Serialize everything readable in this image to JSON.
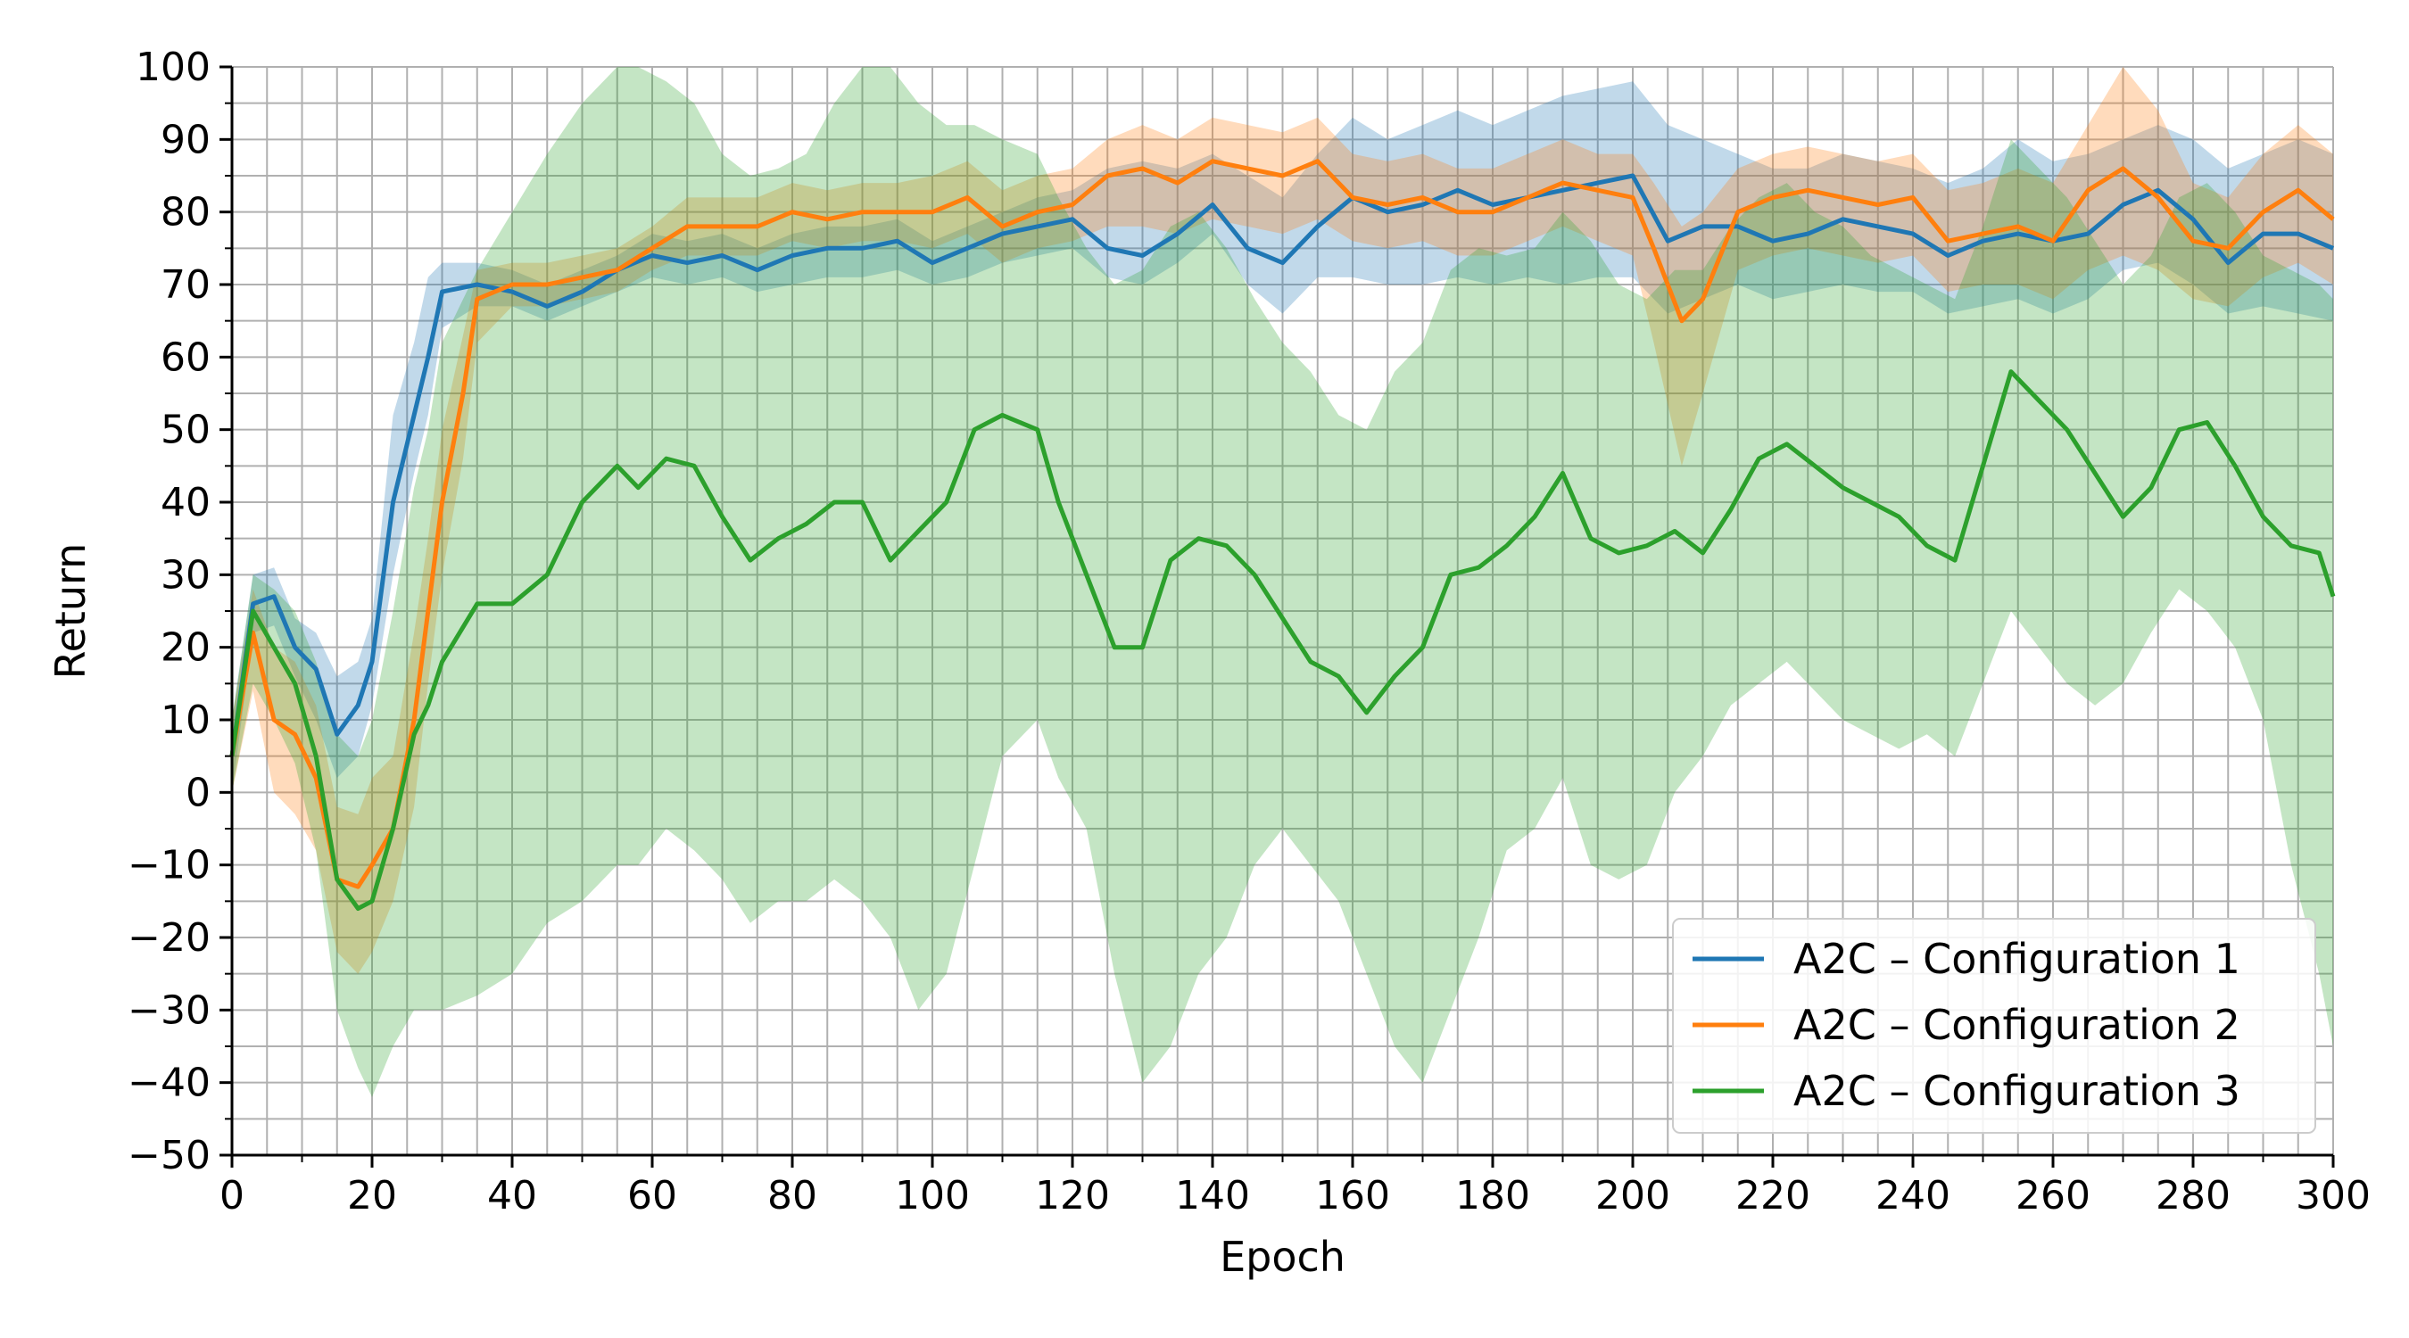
{
  "chart_data": {
    "type": "line",
    "title": "",
    "xlabel": "Epoch",
    "ylabel": "Return",
    "xlim": [
      0,
      300
    ],
    "ylim": [
      -50,
      100
    ],
    "x_ticks": [
      0,
      20,
      40,
      60,
      80,
      100,
      120,
      140,
      160,
      180,
      200,
      220,
      240,
      260,
      280,
      300
    ],
    "y_ticks": [
      -50,
      -40,
      -30,
      -20,
      -10,
      0,
      10,
      20,
      30,
      40,
      50,
      60,
      70,
      80,
      90,
      100
    ],
    "x_tick_labels": [
      "0",
      "20",
      "40",
      "60",
      "80",
      "100",
      "120",
      "140",
      "160",
      "180",
      "200",
      "220",
      "240",
      "260",
      "280",
      "300"
    ],
    "y_tick_labels": [
      "−50",
      "−40",
      "−30",
      "−20",
      "−10",
      "0",
      "10",
      "20",
      "30",
      "40",
      "50",
      "60",
      "70",
      "80",
      "90",
      "100"
    ],
    "grid": true,
    "minor_grid_step": {
      "x": 5,
      "y": 5
    },
    "legend_position": "lower-right",
    "series": [
      {
        "name": "A2C – Configuration 1",
        "color": "#1f77b4",
        "x": [
          0,
          3,
          6,
          9,
          12,
          15,
          18,
          20,
          23,
          26,
          28,
          30,
          35,
          40,
          45,
          50,
          55,
          60,
          65,
          70,
          75,
          80,
          85,
          90,
          95,
          100,
          105,
          110,
          115,
          120,
          125,
          130,
          135,
          140,
          145,
          150,
          155,
          160,
          165,
          170,
          175,
          180,
          185,
          190,
          195,
          200,
          205,
          210,
          215,
          220,
          225,
          230,
          235,
          240,
          245,
          250,
          255,
          260,
          265,
          270,
          275,
          280,
          285,
          290,
          295,
          300
        ],
        "values": [
          5,
          26,
          27,
          20,
          17,
          8,
          12,
          18,
          40,
          52,
          60,
          69,
          70,
          69,
          67,
          69,
          72,
          74,
          73,
          74,
          72,
          74,
          75,
          75,
          76,
          73,
          75,
          77,
          78,
          79,
          75,
          74,
          77,
          81,
          75,
          73,
          78,
          82,
          80,
          81,
          83,
          81,
          82,
          83,
          84,
          85,
          76,
          78,
          78,
          76,
          77,
          79,
          78,
          77,
          74,
          76,
          77,
          76,
          77,
          81,
          83,
          79,
          73,
          77,
          77,
          75
        ],
        "lower": [
          0,
          22,
          23,
          16,
          10,
          2,
          5,
          12,
          30,
          44,
          52,
          64,
          67,
          67,
          65,
          67,
          69,
          71,
          70,
          71,
          69,
          70,
          71,
          71,
          72,
          70,
          71,
          73,
          74,
          75,
          71,
          70,
          73,
          77,
          70,
          66,
          71,
          71,
          70,
          70,
          71,
          70,
          71,
          70,
          71,
          71,
          66,
          68,
          70,
          68,
          69,
          70,
          69,
          69,
          66,
          67,
          68,
          66,
          68,
          72,
          73,
          70,
          66,
          67,
          66,
          65
        ],
        "upper": [
          10,
          30,
          31,
          24,
          22,
          16,
          18,
          24,
          52,
          62,
          71,
          73,
          73,
          72,
          70,
          72,
          74,
          77,
          76,
          77,
          75,
          77,
          78,
          78,
          79,
          76,
          78,
          80,
          82,
          83,
          86,
          87,
          86,
          88,
          85,
          82,
          88,
          93,
          90,
          92,
          94,
          92,
          94,
          96,
          97,
          98,
          92,
          90,
          88,
          86,
          86,
          88,
          87,
          86,
          84,
          86,
          90,
          87,
          88,
          90,
          92,
          90,
          86,
          88,
          90,
          88
        ]
      },
      {
        "name": "A2C – Configuration 2",
        "color": "#ff7f0e",
        "x": [
          0,
          3,
          6,
          9,
          12,
          15,
          18,
          20,
          23,
          26,
          28,
          30,
          33,
          35,
          40,
          45,
          50,
          55,
          60,
          65,
          70,
          75,
          80,
          85,
          90,
          95,
          100,
          105,
          110,
          115,
          120,
          125,
          130,
          135,
          140,
          145,
          150,
          155,
          160,
          165,
          170,
          175,
          180,
          185,
          190,
          195,
          200,
          203,
          207,
          210,
          215,
          220,
          225,
          230,
          235,
          240,
          245,
          250,
          255,
          260,
          265,
          270,
          275,
          280,
          285,
          290,
          295,
          300
        ],
        "values": [
          5,
          22,
          10,
          8,
          2,
          -12,
          -13,
          -10,
          -5,
          10,
          25,
          40,
          55,
          68,
          70,
          70,
          71,
          72,
          75,
          78,
          78,
          78,
          80,
          79,
          80,
          80,
          80,
          82,
          78,
          80,
          81,
          85,
          86,
          84,
          87,
          86,
          85,
          87,
          82,
          81,
          82,
          80,
          80,
          82,
          84,
          83,
          82,
          75,
          65,
          68,
          80,
          82,
          83,
          82,
          81,
          82,
          76,
          77,
          78,
          76,
          83,
          86,
          82,
          76,
          75,
          80,
          83,
          79
        ],
        "lower": [
          0,
          14,
          0,
          -3,
          -8,
          -22,
          -25,
          -22,
          -15,
          -2,
          15,
          30,
          46,
          62,
          67,
          67,
          68,
          69,
          72,
          74,
          74,
          74,
          76,
          75,
          76,
          76,
          75,
          77,
          73,
          75,
          76,
          78,
          78,
          77,
          79,
          78,
          77,
          79,
          76,
          75,
          76,
          74,
          74,
          76,
          78,
          76,
          74,
          62,
          45,
          55,
          72,
          74,
          75,
          74,
          73,
          74,
          69,
          70,
          70,
          68,
          72,
          74,
          72,
          68,
          67,
          71,
          73,
          70
        ],
        "upper": [
          10,
          28,
          20,
          18,
          12,
          -2,
          -3,
          2,
          5,
          22,
          35,
          50,
          63,
          72,
          73,
          73,
          74,
          75,
          78,
          82,
          82,
          82,
          84,
          83,
          84,
          84,
          85,
          87,
          83,
          85,
          86,
          90,
          92,
          90,
          93,
          92,
          91,
          93,
          88,
          87,
          88,
          86,
          86,
          88,
          90,
          88,
          88,
          84,
          78,
          80,
          86,
          88,
          89,
          88,
          87,
          88,
          83,
          84,
          86,
          84,
          92,
          100,
          94,
          84,
          82,
          88,
          92,
          88
        ]
      },
      {
        "name": "A2C – Configuration 3",
        "color": "#2ca02c",
        "x": [
          0,
          3,
          6,
          9,
          12,
          15,
          18,
          20,
          23,
          26,
          28,
          30,
          35,
          40,
          45,
          50,
          55,
          58,
          62,
          66,
          70,
          74,
          78,
          82,
          86,
          90,
          94,
          98,
          102,
          106,
          110,
          115,
          118,
          122,
          126,
          130,
          134,
          138,
          142,
          146,
          150,
          154,
          158,
          162,
          166,
          170,
          174,
          178,
          182,
          186,
          190,
          194,
          198,
          202,
          206,
          210,
          214,
          218,
          222,
          226,
          230,
          234,
          238,
          242,
          246,
          250,
          254,
          258,
          262,
          266,
          270,
          274,
          278,
          282,
          286,
          290,
          294,
          298,
          300
        ],
        "values": [
          5,
          25,
          20,
          15,
          5,
          -12,
          -16,
          -15,
          -5,
          8,
          12,
          18,
          26,
          26,
          30,
          40,
          45,
          42,
          46,
          45,
          38,
          32,
          35,
          37,
          40,
          40,
          32,
          36,
          40,
          50,
          52,
          50,
          40,
          30,
          20,
          20,
          32,
          35,
          34,
          30,
          24,
          18,
          16,
          11,
          16,
          20,
          30,
          31,
          34,
          38,
          44,
          35,
          33,
          34,
          36,
          33,
          39,
          46,
          48,
          45,
          42,
          40,
          38,
          34,
          32,
          45,
          58,
          54,
          50,
          44,
          38,
          42,
          50,
          51,
          45,
          38,
          34,
          33,
          27
        ],
        "lower": [
          0,
          15,
          10,
          4,
          -8,
          -30,
          -38,
          -42,
          -35,
          -30,
          -30,
          -30,
          -28,
          -25,
          -18,
          -15,
          -10,
          -10,
          -5,
          -8,
          -12,
          -18,
          -15,
          -15,
          -12,
          -15,
          -20,
          -30,
          -25,
          -10,
          5,
          10,
          2,
          -5,
          -25,
          -40,
          -35,
          -25,
          -20,
          -10,
          -5,
          -10,
          -15,
          -25,
          -35,
          -40,
          -30,
          -20,
          -8,
          -5,
          2,
          -10,
          -12,
          -10,
          0,
          5,
          12,
          15,
          18,
          14,
          10,
          8,
          6,
          8,
          5,
          15,
          25,
          20,
          15,
          12,
          15,
          22,
          28,
          25,
          20,
          10,
          -10,
          -25,
          -35
        ],
        "upper": [
          10,
          30,
          28,
          25,
          18,
          8,
          5,
          10,
          25,
          42,
          50,
          62,
          72,
          80,
          88,
          95,
          100,
          100,
          98,
          95,
          88,
          85,
          86,
          88,
          95,
          100,
          100,
          95,
          92,
          92,
          90,
          88,
          82,
          75,
          70,
          72,
          78,
          80,
          75,
          68,
          62,
          58,
          52,
          50,
          58,
          62,
          72,
          75,
          74,
          75,
          80,
          76,
          70,
          68,
          72,
          72,
          78,
          82,
          84,
          80,
          78,
          74,
          72,
          70,
          68,
          78,
          90,
          86,
          82,
          76,
          70,
          74,
          82,
          84,
          80,
          74,
          72,
          70,
          68
        ]
      }
    ]
  }
}
